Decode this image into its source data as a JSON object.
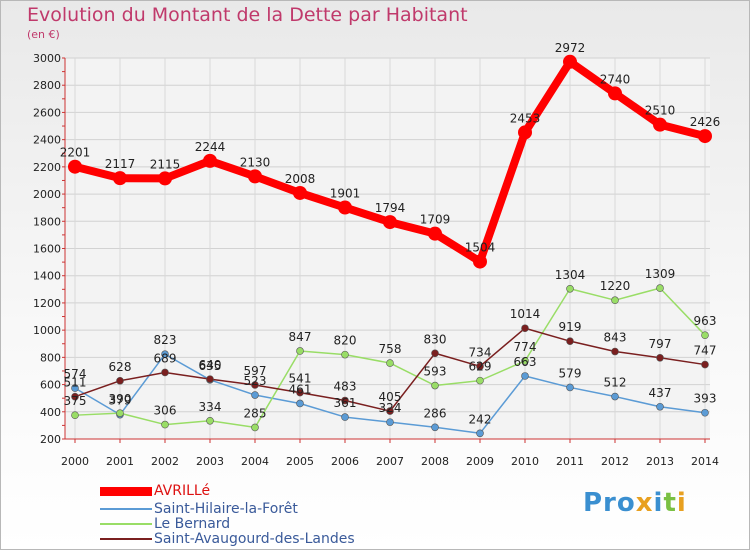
{
  "title": "Evolution du Montant de la Dette par Habitant",
  "unit_label": "(en €)",
  "logo_text": "Proxiti",
  "chart_data": {
    "type": "line",
    "title": "Evolution du Montant de la Dette par Habitant",
    "xlabel": "",
    "ylabel": "(en €)",
    "x": [
      "2000",
      "2001",
      "2002",
      "2003",
      "2004",
      "2005",
      "2006",
      "2007",
      "2008",
      "2009",
      "2010",
      "2011",
      "2012",
      "2013",
      "2014"
    ],
    "ylim": [
      200,
      3000
    ],
    "yticks": [
      200,
      400,
      600,
      800,
      1000,
      1200,
      1400,
      1600,
      1800,
      2000,
      2200,
      2400,
      2600,
      2800,
      3000
    ],
    "grid": true,
    "legend_position": "bottom-left",
    "series": [
      {
        "name": "AVRILLé",
        "color": "#ff0000",
        "values": [
          2201,
          2117,
          2115,
          2244,
          2130,
          2008,
          1901,
          1794,
          1709,
          1504,
          2453,
          2972,
          2740,
          2510,
          2426
        ]
      },
      {
        "name": "Saint-Hilaire-la-Forêt",
        "color": "#5b9bd5",
        "values": [
          574,
          379,
          823,
          635,
          523,
          461,
          361,
          324,
          286,
          242,
          663,
          579,
          512,
          437,
          393
        ]
      },
      {
        "name": "Le Bernard",
        "color": "#99dd66",
        "values": [
          375,
          390,
          306,
          334,
          285,
          847,
          820,
          758,
          593,
          629,
          774,
          1304,
          1220,
          1309,
          963
        ]
      },
      {
        "name": "Saint-Avaugourd-des-Landes",
        "color": "#7a1f1f",
        "values": [
          511,
          628,
          689,
          640,
          597,
          541,
          483,
          405,
          830,
          734,
          1014,
          919,
          843,
          797,
          747
        ]
      }
    ]
  }
}
